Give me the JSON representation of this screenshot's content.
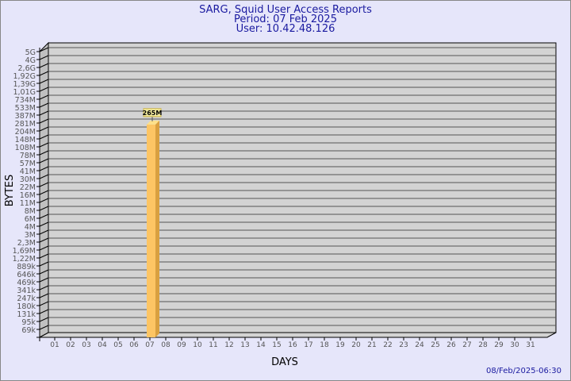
{
  "chart_data": {
    "type": "bar",
    "title": "SARG, Squid User Access Reports",
    "subtitle_lines": [
      "Period: 07 Feb 2025",
      "User: 10.42.48.126"
    ],
    "xlabel": "DAYS",
    "ylabel": "BYTES",
    "y_scale": "log",
    "yticks": [
      "5G",
      "4G",
      "2,6G",
      "1,92G",
      "1,39G",
      "1,01G",
      "734M",
      "533M",
      "387M",
      "281M",
      "204M",
      "148M",
      "108M",
      "78M",
      "57M",
      "41M",
      "30M",
      "22M",
      "16M",
      "11M",
      "8M",
      "6M",
      "4M",
      "3M",
      "2,3M",
      "1,69M",
      "1,22M",
      "889k",
      "646k",
      "469k",
      "341k",
      "247k",
      "180k",
      "131k",
      "95k",
      "69k"
    ],
    "ylim": [
      69000,
      5000000000
    ],
    "categories": [
      "01",
      "02",
      "03",
      "04",
      "05",
      "06",
      "07",
      "08",
      "09",
      "10",
      "11",
      "12",
      "13",
      "14",
      "15",
      "16",
      "17",
      "18",
      "19",
      "20",
      "21",
      "22",
      "23",
      "24",
      "25",
      "26",
      "27",
      "28",
      "29",
      "30",
      "31"
    ],
    "bars": [
      {
        "category": "07",
        "value": 265000000,
        "label": "265M"
      }
    ],
    "grid": true,
    "colors": {
      "background": "#e6e6fa",
      "wall": "#d3d3d3",
      "side_wall": "#c0c0c0",
      "bar": "#fdc564",
      "bar_side": "#d9a040",
      "title": "#1a1aa0"
    }
  },
  "footer": {
    "timestamp": "08/Feb/2025-06:30"
  }
}
